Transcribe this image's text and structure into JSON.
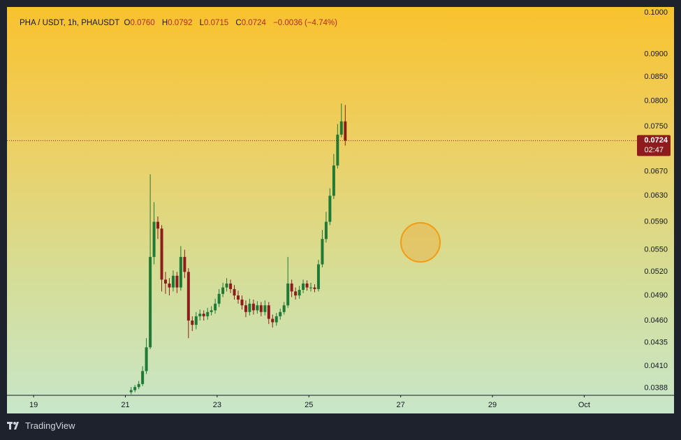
{
  "chart_data": {
    "type": "candlestick",
    "symbol": "PHA / USDT, 1h, PHAUSDT",
    "ohlc_labels": [
      "O",
      "H",
      "L",
      "C"
    ],
    "ohlc": [
      {
        "value": 0.076,
        "label": "0.0760"
      },
      {
        "value": 0.0792,
        "label": "0.0792"
      },
      {
        "value": 0.0715,
        "label": "0.0715"
      },
      {
        "value": 0.0724,
        "label": "0.0724"
      }
    ],
    "change": {
      "value": -0.0036,
      "label": "−0.0036"
    },
    "change_pct": {
      "value": -4.74,
      "label": "(−4.74%)"
    },
    "last_price": {
      "value": 0.0724,
      "label": "0.0724"
    },
    "countdown": "02:47",
    "up_color": "#1f7a35",
    "down_color": "#8e1c1c",
    "log_scale": true,
    "ylim": [
      0.0381,
      0.1014
    ],
    "yticks": [
      {
        "value": 0.1,
        "label": "0.1000"
      },
      {
        "value": 0.09,
        "label": "0.0900"
      },
      {
        "value": 0.085,
        "label": "0.0850"
      },
      {
        "value": 0.08,
        "label": "0.0800"
      },
      {
        "value": 0.075,
        "label": "0.0750"
      },
      {
        "value": 0.067,
        "label": "0.0670"
      },
      {
        "value": 0.063,
        "label": "0.0630"
      },
      {
        "value": 0.059,
        "label": "0.0590"
      },
      {
        "value": 0.055,
        "label": "0.0550"
      },
      {
        "value": 0.052,
        "label": "0.0520"
      },
      {
        "value": 0.049,
        "label": "0.0490"
      },
      {
        "value": 0.046,
        "label": "0.0460"
      },
      {
        "value": 0.0435,
        "label": "0.0435"
      },
      {
        "value": 0.041,
        "label": "0.0410"
      },
      {
        "value": 0.0388,
        "label": "0.0388"
      }
    ],
    "xlim": [
      18.42,
      32.15
    ],
    "xticks": [
      19,
      21,
      23,
      25,
      27,
      29,
      {
        "value": 31,
        "label": "Oct"
      }
    ],
    "x": [
      21.125,
      21.208,
      21.292,
      21.375,
      21.458,
      21.542,
      21.625,
      21.708,
      21.792,
      21.875,
      21.958,
      22.042,
      22.125,
      22.208,
      22.292,
      22.375,
      22.458,
      22.542,
      22.625,
      22.708,
      22.792,
      22.875,
      22.958,
      23.042,
      23.125,
      23.208,
      23.292,
      23.375,
      23.458,
      23.542,
      23.625,
      23.708,
      23.792,
      23.875,
      23.958,
      24.042,
      24.125,
      24.208,
      24.292,
      24.375,
      24.458,
      24.542,
      24.625,
      24.708,
      24.792,
      24.875,
      24.958,
      25.042,
      25.125,
      25.208,
      25.292,
      25.375,
      25.458,
      25.542,
      25.625,
      25.708,
      25.792
    ],
    "open": [
      0.0384,
      0.0386,
      0.0389,
      0.0392,
      0.0405,
      0.043,
      0.054,
      0.059,
      0.058,
      0.051,
      0.0505,
      0.05,
      0.0515,
      0.05,
      0.054,
      0.052,
      0.046,
      0.0455,
      0.0465,
      0.0468,
      0.0465,
      0.047,
      0.0472,
      0.048,
      0.0492,
      0.05,
      0.0505,
      0.0498,
      0.049,
      0.0485,
      0.0478,
      0.047,
      0.048,
      0.0472,
      0.0478,
      0.047,
      0.0478,
      0.0462,
      0.0458,
      0.0465,
      0.047,
      0.0478,
      0.0505,
      0.0495,
      0.049,
      0.0497,
      0.0505,
      0.05,
      0.05,
      0.0498,
      0.053,
      0.0565,
      0.059,
      0.063,
      0.068,
      0.0735,
      0.076
    ],
    "high": [
      0.0389,
      0.0391,
      0.0395,
      0.041,
      0.044,
      0.0665,
      0.062,
      0.0598,
      0.0585,
      0.052,
      0.0512,
      0.0522,
      0.052,
      0.0555,
      0.055,
      0.0525,
      0.0465,
      0.047,
      0.0473,
      0.0472,
      0.0475,
      0.0477,
      0.0486,
      0.0498,
      0.0506,
      0.0512,
      0.051,
      0.0503,
      0.0496,
      0.049,
      0.0484,
      0.0486,
      0.0485,
      0.0483,
      0.0482,
      0.0484,
      0.0482,
      0.0467,
      0.0469,
      0.0474,
      0.0482,
      0.054,
      0.051,
      0.05,
      0.0502,
      0.051,
      0.0509,
      0.0506,
      0.0504,
      0.0536,
      0.0578,
      0.0605,
      0.0642,
      0.07,
      0.0755,
      0.0795,
      0.0792
    ],
    "low": [
      0.0382,
      0.0384,
      0.0387,
      0.039,
      0.0402,
      0.0428,
      0.053,
      0.0565,
      0.0495,
      0.0492,
      0.049,
      0.0495,
      0.0493,
      0.0496,
      0.0512,
      0.044,
      0.0448,
      0.045,
      0.046,
      0.046,
      0.0461,
      0.0466,
      0.0468,
      0.0476,
      0.0488,
      0.0495,
      0.0493,
      0.0485,
      0.048,
      0.0473,
      0.0464,
      0.0466,
      0.0467,
      0.0468,
      0.0465,
      0.0466,
      0.0456,
      0.0452,
      0.0454,
      0.0461,
      0.0467,
      0.0475,
      0.0488,
      0.0485,
      0.0486,
      0.0493,
      0.0496,
      0.0495,
      0.0494,
      0.0495,
      0.0526,
      0.056,
      0.0585,
      0.0625,
      0.0675,
      0.073,
      0.0715
    ],
    "close": [
      0.0386,
      0.0389,
      0.0392,
      0.0405,
      0.043,
      0.054,
      0.059,
      0.058,
      0.051,
      0.0505,
      0.05,
      0.0515,
      0.05,
      0.054,
      0.052,
      0.046,
      0.0455,
      0.0465,
      0.0468,
      0.0465,
      0.047,
      0.0472,
      0.048,
      0.0492,
      0.05,
      0.0505,
      0.0498,
      0.049,
      0.0485,
      0.0478,
      0.047,
      0.048,
      0.0472,
      0.0478,
      0.047,
      0.0478,
      0.0462,
      0.0458,
      0.0465,
      0.047,
      0.0478,
      0.0505,
      0.0495,
      0.049,
      0.0497,
      0.0505,
      0.05,
      0.05,
      0.0498,
      0.053,
      0.0565,
      0.059,
      0.063,
      0.068,
      0.0735,
      0.076,
      0.0724
    ]
  },
  "footer": {
    "brand": "TradingView"
  }
}
